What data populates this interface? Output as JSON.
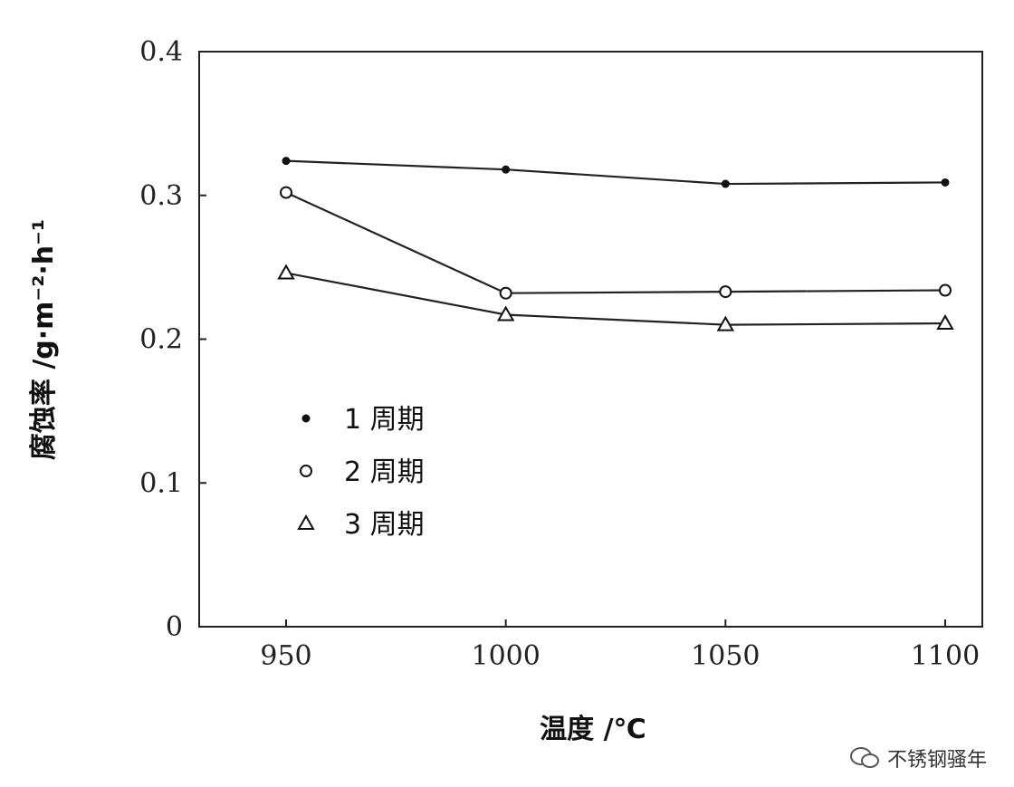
{
  "chart_data": {
    "type": "line",
    "title": "",
    "xlabel": "温度 /℃",
    "ylabel": "腐蚀率 /g·m⁻²·h⁻¹",
    "x": [
      950,
      1000,
      1050,
      1100
    ],
    "xticks": [
      "950",
      "1000",
      "1050",
      "1100"
    ],
    "yticks": [
      "0",
      "0.1",
      "0.2",
      "0.3",
      "0.4"
    ],
    "xlim": [
      930,
      1110
    ],
    "ylim": [
      0,
      0.4
    ],
    "grid": false,
    "legend_position": "center-left",
    "series": [
      {
        "name": "1 周期",
        "marker": "filled-circle",
        "values": [
          0.324,
          0.318,
          0.308,
          0.309
        ]
      },
      {
        "name": "2 周期",
        "marker": "open-circle",
        "values": [
          0.302,
          0.232,
          0.233,
          0.234
        ]
      },
      {
        "name": "3 周期",
        "marker": "open-triangle",
        "values": [
          0.246,
          0.217,
          0.21,
          0.211
        ]
      }
    ]
  },
  "watermark": {
    "text": "不锈钢骚年",
    "icon": "wechat-icon"
  }
}
